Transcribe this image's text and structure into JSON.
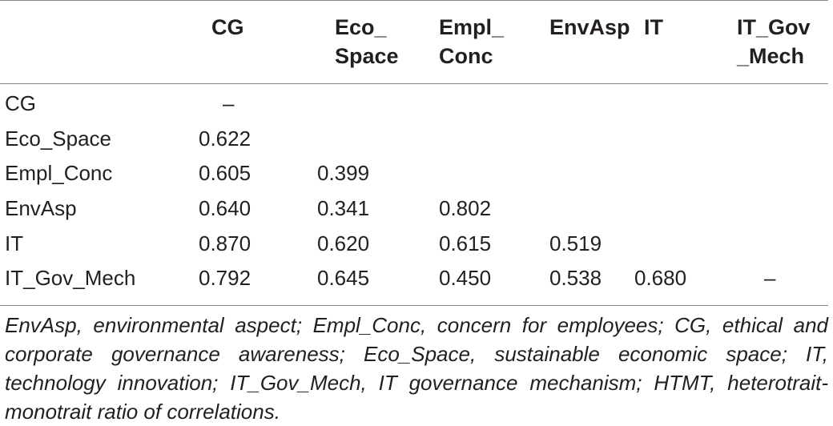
{
  "table": {
    "headers": [
      "",
      "CG",
      "Eco_\nSpace",
      "Empl_\nConc",
      "EnvAsp",
      "IT",
      "IT_Gov\n_Mech"
    ],
    "rows": [
      {
        "label": "CG",
        "cells": [
          "–",
          "",
          "",
          "",
          "",
          ""
        ]
      },
      {
        "label": "Eco_Space",
        "cells": [
          "0.622",
          "",
          "",
          "",
          "",
          ""
        ]
      },
      {
        "label": "Empl_Conc",
        "cells": [
          "0.605",
          "0.399",
          "",
          "",
          "",
          ""
        ]
      },
      {
        "label": "EnvAsp",
        "cells": [
          "0.640",
          "0.341",
          "0.802",
          "",
          "",
          ""
        ]
      },
      {
        "label": "IT",
        "cells": [
          "0.870",
          "0.620",
          "0.615",
          "0.519",
          "",
          ""
        ]
      },
      {
        "label": "IT_Gov_Mech",
        "cells": [
          "0.792",
          "0.645",
          "0.450",
          "0.538",
          "0.680",
          "–"
        ]
      }
    ]
  },
  "footnote": "EnvAsp, environmental aspect; Empl_Conc, concern for employees; CG, ethical and corporate governance awareness; Eco_Space, sustainable economic space; IT, technology innovation; IT_Gov_Mech, IT governance mechanism; HTMT, heterotrait-monotrait ratio of correlations."
}
